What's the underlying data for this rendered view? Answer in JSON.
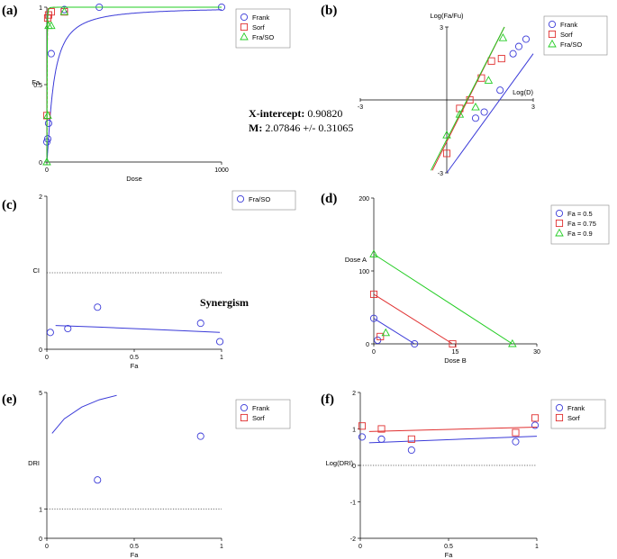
{
  "colors": {
    "blue": "#3a3ad8",
    "red": "#e03030",
    "green": "#22cc22",
    "dotted": "#444444",
    "axis": "#000000",
    "olive": "#8a7a10"
  },
  "annotations": {
    "xint_label": "X-intercept:",
    "xint_value": " 0.90820",
    "m_label": "M:",
    "m_value": " 2.07846 +/- 0.31065",
    "synergism": "Synergism"
  },
  "chart_data": [
    {
      "panel": "(a)",
      "type": "scatter",
      "xlabel": "Dose",
      "ylabel": "Fa",
      "xlim": [
        0,
        1000
      ],
      "ylim": [
        0,
        1
      ],
      "xticks": [
        0,
        1000
      ],
      "yticks": [
        0,
        0.5,
        1
      ],
      "ytick_labels": [
        "0",
        "0.5",
        "1"
      ],
      "legend": {
        "position": "top-right",
        "entries": [
          "Frank",
          "Sorf",
          "Fra/SO"
        ]
      },
      "series": [
        {
          "name": "Frank",
          "marker": "circle",
          "color": "blue",
          "x": [
            0,
            5,
            10,
            25,
            100,
            300,
            1000
          ],
          "y": [
            0.13,
            0.15,
            0.25,
            0.7,
            0.985,
            1.0,
            1.0
          ],
          "curve": {
            "type": "median-effect",
            "dm": 38,
            "m": 1.25
          }
        },
        {
          "name": "Sorf",
          "marker": "square",
          "color": "red",
          "x": [
            0,
            5,
            10,
            25,
            100
          ],
          "y": [
            0.3,
            0.93,
            0.95,
            0.97,
            0.97
          ],
          "curve": {
            "type": "median-effect",
            "dm": 1.6,
            "m": 2.2
          }
        },
        {
          "name": "Fra/SO",
          "marker": "triangle",
          "color": "green",
          "x": [
            0,
            5,
            10,
            25,
            100
          ],
          "y": [
            0.0,
            0.3,
            0.88,
            0.88,
            0.97
          ],
          "curve": {
            "type": "median-effect",
            "dm": 1.6,
            "m": 2.3
          }
        }
      ]
    },
    {
      "panel": "(b)",
      "type": "scatter",
      "xlabel": "Log(D)",
      "ylabel": "Log(Fa/Fu)",
      "xlim": [
        -3,
        3
      ],
      "ylim": [
        -3,
        3
      ],
      "xticks": [
        -3,
        3
      ],
      "yticks": [
        -3,
        3
      ],
      "xtick_labels": [
        "-3",
        "3"
      ],
      "ytick_labels": [
        "-3",
        "3"
      ],
      "legend": {
        "position": "top-right",
        "entries": [
          "Frank",
          "Sorf",
          "Fra/SO"
        ]
      },
      "series": [
        {
          "name": "Frank",
          "marker": "circle",
          "color": "blue",
          "x": [
            1.0,
            1.3,
            1.85,
            2.3,
            2.5,
            2.75
          ],
          "y": [
            -0.75,
            -0.5,
            0.4,
            1.9,
            2.2,
            2.5
          ],
          "line": {
            "x": [
              0.0,
              3.0
            ],
            "y": [
              -3.0,
              1.9
            ]
          }
        },
        {
          "name": "Sorf",
          "marker": "square",
          "color": "red",
          "x": [
            0.0,
            0.45,
            0.8,
            1.2,
            1.55,
            1.9
          ],
          "y": [
            -2.2,
            -0.35,
            0.0,
            0.9,
            1.6,
            1.7
          ],
          "line": {
            "x": [
              -0.5,
              2.0
            ],
            "y": [
              -2.9,
              3.0
            ]
          }
        },
        {
          "name": "Fra/SO",
          "marker": "triangle",
          "color": "green",
          "x": [
            0.0,
            0.45,
            1.0,
            1.45,
            1.95
          ],
          "y": [
            -1.45,
            -0.6,
            -0.3,
            0.8,
            2.55
          ],
          "line": {
            "x": [
              -0.55,
              2.0
            ],
            "y": [
              -2.9,
              3.0
            ]
          }
        }
      ]
    },
    {
      "panel": "(c)",
      "type": "scatter",
      "xlabel": "Fa",
      "ylabel": "CI",
      "xlim": [
        0,
        1
      ],
      "ylim": [
        0,
        2
      ],
      "xticks": [
        0,
        0.5,
        1
      ],
      "yticks": [
        0,
        2
      ],
      "xtick_labels": [
        "0",
        "0.5",
        "1"
      ],
      "ytick_labels": [
        "0",
        "2"
      ],
      "reference_line": 1,
      "legend": {
        "position": "top-right",
        "entries": [
          "Fra/SO"
        ]
      },
      "series": [
        {
          "name": "Fra/SO",
          "marker": "circle",
          "color": "blue",
          "x": [
            0.02,
            0.12,
            0.29,
            0.88,
            0.99
          ],
          "y": [
            0.22,
            0.27,
            0.55,
            0.34,
            0.1
          ],
          "curve": {
            "x": [
              0.05,
              0.3,
              0.6,
              0.99
            ],
            "y": [
              0.31,
              0.29,
              0.26,
              0.22
            ]
          }
        }
      ]
    },
    {
      "panel": "(d)",
      "type": "scatter",
      "xlabel": "Dose B",
      "ylabel": "Dose A",
      "xlim": [
        0,
        30
      ],
      "ylim": [
        0,
        200
      ],
      "xticks": [
        0,
        15,
        30
      ],
      "yticks": [
        0,
        100,
        200
      ],
      "legend": {
        "position": "top-right",
        "entries": [
          "Fa = 0.5",
          "Fa = 0.75",
          "Fa = 0.9"
        ]
      },
      "series": [
        {
          "name": "Fa = 0.5",
          "marker": "circle",
          "color": "blue",
          "x": [
            0,
            0.7,
            7.5
          ],
          "y": [
            35,
            5,
            0
          ],
          "isobole": {
            "x": [
              0,
              7.5
            ],
            "y": [
              35,
              0
            ]
          }
        },
        {
          "name": "Fa = 0.75",
          "marker": "square",
          "color": "red",
          "x": [
            0,
            1.2,
            14.5
          ],
          "y": [
            68,
            10,
            0
          ],
          "isobole": {
            "x": [
              0,
              14.5
            ],
            "y": [
              68,
              0
            ]
          }
        },
        {
          "name": "Fa = 0.9",
          "marker": "triangle",
          "color": "green",
          "x": [
            0,
            2.2,
            25.5
          ],
          "y": [
            123,
            15,
            0
          ],
          "isobole": {
            "x": [
              0,
              25.5
            ],
            "y": [
              123,
              0
            ]
          }
        }
      ]
    },
    {
      "panel": "(e)",
      "type": "scatter",
      "xlabel": "Fa",
      "ylabel": "DRI",
      "xlim": [
        0,
        1
      ],
      "ylim": [
        0,
        5
      ],
      "xticks": [
        0,
        0.5,
        1
      ],
      "yticks": [
        0,
        1,
        5
      ],
      "xtick_labels": [
        "0",
        "0.5",
        "1"
      ],
      "ytick_labels": [
        "0",
        "1",
        "5"
      ],
      "reference_line": 1,
      "legend": {
        "position": "top-right",
        "entries": [
          "Frank",
          "Sorf"
        ]
      },
      "series": [
        {
          "name": "Frank",
          "marker": "circle",
          "color": "blue",
          "x": [
            0.29,
            0.88
          ],
          "y": [
            2.0,
            3.5
          ],
          "curve": {
            "x": [
              0.03,
              0.1,
              0.2,
              0.3,
              0.4
            ],
            "y": [
              3.6,
              4.1,
              4.5,
              4.75,
              4.9
            ]
          }
        },
        {
          "name": "Sorf",
          "marker": "square",
          "color": "red",
          "x": [],
          "y": []
        }
      ]
    },
    {
      "panel": "(f)",
      "type": "scatter",
      "xlabel": "Fa",
      "ylabel": "Log(DRI)",
      "xlim": [
        0,
        1
      ],
      "ylim": [
        -2,
        2
      ],
      "xticks": [
        0,
        0.5,
        1
      ],
      "yticks": [
        -2,
        -1,
        0,
        1,
        2
      ],
      "xtick_labels": [
        "0",
        "0.5",
        "1"
      ],
      "ytick_labels": [
        "-2",
        "-1",
        "0",
        "1",
        "2"
      ],
      "reference_line": 0,
      "legend": {
        "position": "top-right",
        "entries": [
          "Frank",
          "Sorf"
        ]
      },
      "series": [
        {
          "name": "Frank",
          "marker": "circle",
          "color": "blue",
          "x": [
            0.01,
            0.12,
            0.29,
            0.88,
            0.99
          ],
          "y": [
            0.78,
            0.72,
            0.42,
            0.65,
            1.1
          ],
          "line": {
            "x": [
              0.05,
              1.0
            ],
            "y": [
              0.62,
              0.8
            ]
          }
        },
        {
          "name": "Sorf",
          "marker": "square",
          "color": "red",
          "x": [
            0.01,
            0.12,
            0.29,
            0.88,
            0.99
          ],
          "y": [
            1.08,
            1.0,
            0.72,
            0.9,
            1.3
          ],
          "line": {
            "x": [
              0.05,
              1.0
            ],
            "y": [
              0.93,
              1.05
            ]
          }
        }
      ]
    }
  ]
}
